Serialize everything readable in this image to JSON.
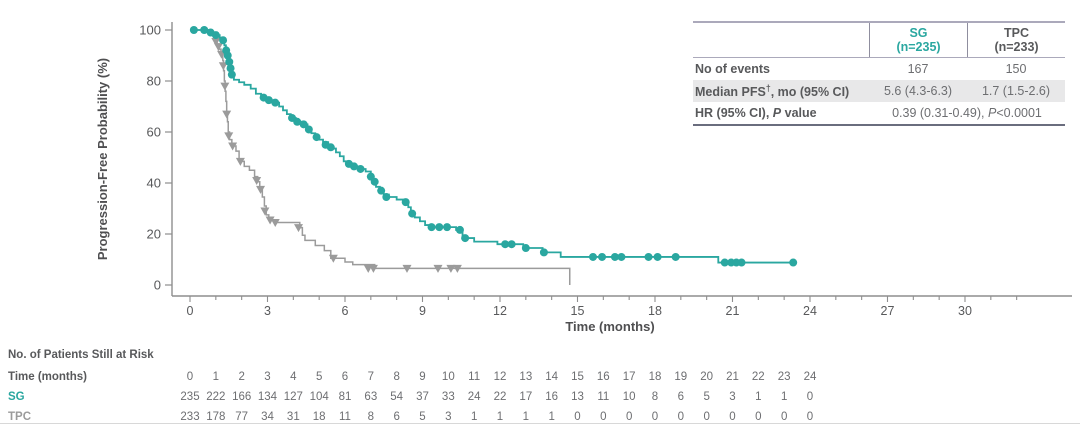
{
  "chart_data": {
    "type": "line",
    "subtype": "kaplan-meier-step",
    "title": "",
    "xlabel": "Time (months)",
    "ylabel": "Progression-Free Probability (%)",
    "xlim": [
      0,
      34
    ],
    "ylim": [
      0,
      100
    ],
    "x_ticks_major": [
      0,
      3,
      6,
      9,
      12,
      15,
      18,
      21,
      24,
      27,
      30
    ],
    "x_ticks_minor_step": 1,
    "x_ticks_minor_max": 32,
    "y_ticks": [
      0,
      20,
      40,
      60,
      80,
      100
    ],
    "grid": false,
    "legend_position": "none",
    "axis_color": "#8e8e8e",
    "tick_text_color": "#58595b",
    "series": [
      {
        "name": "TPC",
        "color": "#9b9b9b",
        "marker": "triangle-down",
        "end_time": 14.7,
        "steps": [
          [
            0,
            100
          ],
          [
            0.8,
            98.5
          ],
          [
            0.95,
            96.5
          ],
          [
            1.05,
            94.5
          ],
          [
            1.12,
            92.5
          ],
          [
            1.2,
            90.5
          ],
          [
            1.27,
            88
          ],
          [
            1.3,
            84
          ],
          [
            1.33,
            80
          ],
          [
            1.36,
            76
          ],
          [
            1.39,
            72
          ],
          [
            1.42,
            68
          ],
          [
            1.45,
            64
          ],
          [
            1.48,
            60
          ],
          [
            1.53,
            57
          ],
          [
            1.62,
            54.5
          ],
          [
            1.78,
            52.5
          ],
          [
            1.9,
            48.5
          ],
          [
            2.1,
            46.5
          ],
          [
            2.3,
            45
          ],
          [
            2.5,
            42.5
          ],
          [
            2.62,
            40.5
          ],
          [
            2.7,
            37.5
          ],
          [
            2.8,
            34.5
          ],
          [
            2.88,
            31
          ],
          [
            2.95,
            27.5
          ],
          [
            3.05,
            25.5
          ],
          [
            3.3,
            24.5
          ],
          [
            4.25,
            22.5
          ],
          [
            4.35,
            19.5
          ],
          [
            4.45,
            17.5
          ],
          [
            4.85,
            15.5
          ],
          [
            5.2,
            13.5
          ],
          [
            5.45,
            10.5
          ],
          [
            6.0,
            9
          ],
          [
            6.3,
            8
          ],
          [
            7.15,
            6.5
          ],
          [
            14.7,
            0
          ]
        ],
        "censors": [
          [
            1.0,
            95.5
          ],
          [
            1.1,
            93.5
          ],
          [
            1.22,
            90.5
          ],
          [
            1.29,
            86
          ],
          [
            1.35,
            78
          ],
          [
            1.42,
            67
          ],
          [
            1.5,
            58.5
          ],
          [
            1.65,
            54.5
          ],
          [
            1.95,
            48.5
          ],
          [
            2.58,
            41
          ],
          [
            2.73,
            37.5
          ],
          [
            2.9,
            29
          ],
          [
            3.1,
            25.5
          ],
          [
            3.3,
            24.5
          ],
          [
            4.2,
            22.5
          ],
          [
            5.55,
            10.5
          ],
          [
            6.9,
            6.5
          ],
          [
            7.1,
            6.5
          ],
          [
            8.4,
            6.5
          ],
          [
            9.6,
            6.5
          ],
          [
            10.1,
            6.5
          ],
          [
            10.35,
            6.5
          ]
        ]
      },
      {
        "name": "SG",
        "color": "#2aa7a0",
        "marker": "circle",
        "end_time": 23.4,
        "steps": [
          [
            0,
            100
          ],
          [
            0.85,
            99
          ],
          [
            1.05,
            98
          ],
          [
            1.15,
            97
          ],
          [
            1.25,
            96
          ],
          [
            1.33,
            94
          ],
          [
            1.39,
            92
          ],
          [
            1.45,
            90
          ],
          [
            1.5,
            87.5
          ],
          [
            1.55,
            85
          ],
          [
            1.6,
            82.5
          ],
          [
            1.7,
            80.5
          ],
          [
            1.9,
            79.5
          ],
          [
            2.1,
            78.5
          ],
          [
            2.35,
            77
          ],
          [
            2.55,
            75
          ],
          [
            2.75,
            73.5
          ],
          [
            2.95,
            72.5
          ],
          [
            3.2,
            71.5
          ],
          [
            3.45,
            70
          ],
          [
            3.6,
            68.5
          ],
          [
            3.75,
            67
          ],
          [
            3.9,
            65.5
          ],
          [
            4.1,
            64
          ],
          [
            4.35,
            63
          ],
          [
            4.55,
            61
          ],
          [
            4.7,
            59.5
          ],
          [
            4.85,
            58
          ],
          [
            5.0,
            57
          ],
          [
            5.15,
            56
          ],
          [
            5.35,
            54.5
          ],
          [
            5.5,
            53.5
          ],
          [
            5.65,
            52
          ],
          [
            5.8,
            50.5
          ],
          [
            5.95,
            48.5
          ],
          [
            6.1,
            47.5
          ],
          [
            6.3,
            46.5
          ],
          [
            6.55,
            45.5
          ],
          [
            6.8,
            44.5
          ],
          [
            7.0,
            42.5
          ],
          [
            7.1,
            40.5
          ],
          [
            7.2,
            38.5
          ],
          [
            7.35,
            37
          ],
          [
            7.5,
            35.5
          ],
          [
            7.7,
            34.5
          ],
          [
            8.0,
            33.5
          ],
          [
            8.3,
            32.5
          ],
          [
            8.45,
            30.5
          ],
          [
            8.55,
            28
          ],
          [
            8.7,
            26.5
          ],
          [
            8.9,
            25
          ],
          [
            9.1,
            23.5
          ],
          [
            9.3,
            22.7
          ],
          [
            10.3,
            21.6
          ],
          [
            10.55,
            18.4
          ],
          [
            11.0,
            17
          ],
          [
            11.9,
            16
          ],
          [
            12.9,
            14.5
          ],
          [
            13.65,
            12.8
          ],
          [
            14.35,
            11
          ],
          [
            20.45,
            8.8
          ]
        ],
        "censors": [
          [
            0.15,
            100
          ],
          [
            0.55,
            100
          ],
          [
            0.8,
            99
          ],
          [
            1.0,
            98
          ],
          [
            1.28,
            96
          ],
          [
            1.4,
            92
          ],
          [
            1.46,
            90
          ],
          [
            1.52,
            87.5
          ],
          [
            1.57,
            85
          ],
          [
            1.62,
            82.5
          ],
          [
            2.85,
            73.5
          ],
          [
            3.05,
            72.5
          ],
          [
            3.3,
            71.5
          ],
          [
            3.95,
            65.5
          ],
          [
            4.15,
            64
          ],
          [
            4.4,
            63
          ],
          [
            4.6,
            61
          ],
          [
            4.9,
            58
          ],
          [
            5.25,
            55
          ],
          [
            5.45,
            54
          ],
          [
            6.15,
            47.5
          ],
          [
            6.35,
            46.5
          ],
          [
            6.6,
            45.5
          ],
          [
            7.0,
            42.5
          ],
          [
            7.15,
            40.5
          ],
          [
            7.4,
            37
          ],
          [
            7.6,
            34.5
          ],
          [
            8.35,
            32.5
          ],
          [
            8.6,
            28
          ],
          [
            9.35,
            22.7
          ],
          [
            9.65,
            22.7
          ],
          [
            9.95,
            22.7
          ],
          [
            10.45,
            21.6
          ],
          [
            10.65,
            18.4
          ],
          [
            12.2,
            16
          ],
          [
            12.45,
            16
          ],
          [
            13.0,
            14.5
          ],
          [
            13.7,
            12.8
          ],
          [
            15.6,
            11
          ],
          [
            15.95,
            11
          ],
          [
            16.45,
            11
          ],
          [
            16.7,
            11
          ],
          [
            17.75,
            11
          ],
          [
            18.1,
            11
          ],
          [
            18.8,
            11
          ],
          [
            20.7,
            8.8
          ],
          [
            20.95,
            8.8
          ],
          [
            21.15,
            8.8
          ],
          [
            21.35,
            8.8
          ],
          [
            23.35,
            8.8
          ]
        ]
      }
    ]
  },
  "summary_table": {
    "header": {
      "sg_line1": "SG",
      "sg_line2": "(n=235)",
      "tpc_line1": "TPC",
      "tpc_line2": "(n=233)"
    },
    "rows": {
      "events": {
        "label": "No of events",
        "sg": "167",
        "tpc": "150"
      },
      "median": {
        "label_pre": "Median PFS",
        "label_sup": "†",
        "label_post": ", mo (95% CI)",
        "sg": "5.6 (4.3-6.3)",
        "tpc": "1.7 (1.5-2.6)"
      },
      "hr": {
        "label_pre": "HR (95% CI), ",
        "label_it": "P",
        "label_post": " value",
        "value_pre": "0.39 (0.31-0.49), ",
        "value_it": "P",
        "value_post": "<0.0001"
      }
    },
    "colors": {
      "sg": "#2aa7a0",
      "tpc": "#58595b"
    }
  },
  "risk_table": {
    "title": "No. of Patients Still at Risk",
    "time_label": "Time (months)",
    "times": [
      0,
      1,
      2,
      3,
      4,
      5,
      6,
      7,
      8,
      9,
      10,
      11,
      12,
      13,
      14,
      15,
      16,
      17,
      18,
      19,
      20,
      21,
      22,
      23,
      24
    ],
    "rows": [
      {
        "label": "SG",
        "color": "#2aa7a0",
        "counts": [
          235,
          222,
          166,
          134,
          127,
          104,
          81,
          63,
          54,
          37,
          33,
          24,
          22,
          17,
          16,
          13,
          11,
          10,
          8,
          6,
          5,
          3,
          1,
          1,
          0
        ]
      },
      {
        "label": "TPC",
        "color": "#9b9b9b",
        "counts": [
          233,
          178,
          77,
          34,
          31,
          18,
          11,
          8,
          6,
          5,
          3,
          1,
          1,
          1,
          1,
          0,
          0,
          0,
          0,
          0,
          0,
          0,
          0,
          0,
          0
        ]
      }
    ]
  }
}
